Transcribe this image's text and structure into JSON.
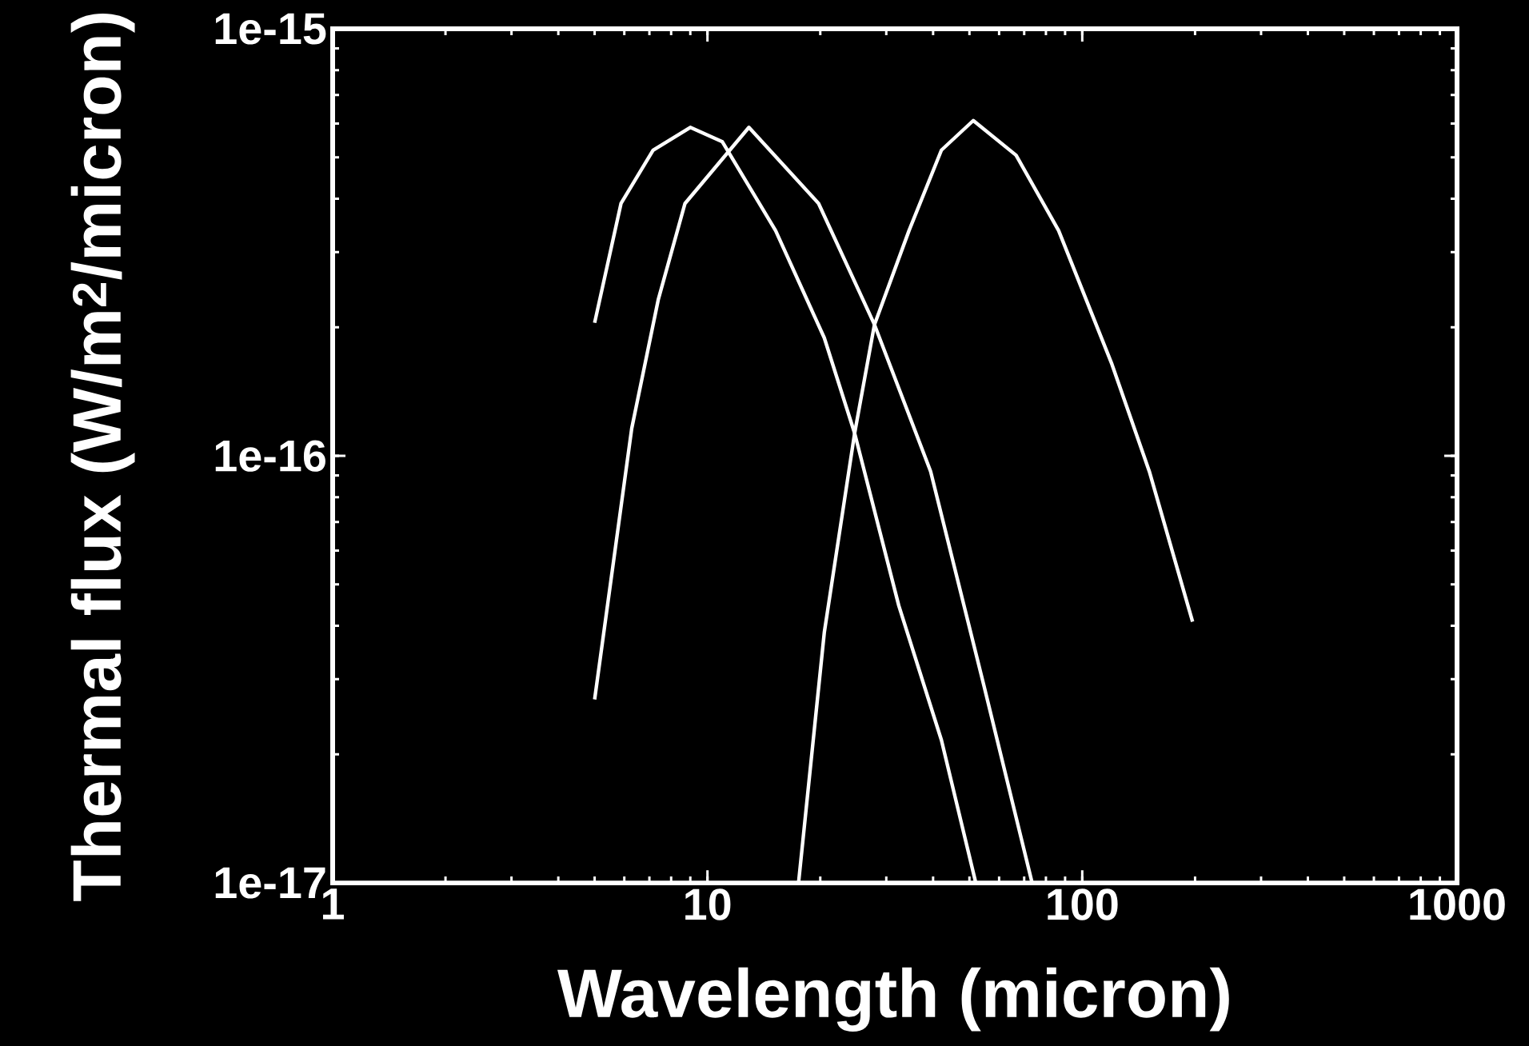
{
  "chart_data": {
    "type": "line",
    "xlabel": "Wavelength (micron)",
    "ylabel": "Thermal flux (W/m$^{2}$/micron)",
    "log": "xy",
    "marker": "none",
    "line_style": "solid",
    "xlim": [
      1,
      1000
    ],
    "ylim": [
      1e-17,
      1e-15
    ],
    "xticks": [
      1,
      10,
      100,
      1000
    ],
    "yticks": [
      {
        "value": 1e-17,
        "label": "1e-17"
      },
      {
        "value": 1e-16,
        "label": "1e-16"
      },
      {
        "value": 1e-15,
        "label": "1e-15"
      }
    ],
    "series": [
      {
        "color": "#ffffff",
        "x": [
          5,
          5.88,
          7.16,
          9.0,
          10.96,
          15.2,
          20.5,
          24.7,
          32.4,
          42.1,
          52
        ],
        "values": [
          2.05e-16,
          3.9e-16,
          5.2e-16,
          5.88e-16,
          5.44e-16,
          3.37e-16,
          1.89e-16,
          1.13e-16,
          4.46e-17,
          2.16e-17,
          1e-17
        ]
      },
      {
        "color": "#ffffff",
        "x": [
          5,
          6.28,
          7.39,
          8.71,
          12.9,
          19.8,
          27.9,
          39.4,
          54.7,
          73.5
        ],
        "values": [
          2.69e-17,
          1.16e-16,
          2.32e-16,
          3.9e-16,
          5.88e-16,
          3.9e-16,
          2.03e-16,
          9.2e-17,
          2.89e-17,
          1e-17
        ]
      },
      {
        "color": "#ffffff",
        "x": [
          17.5,
          20.5,
          24.7,
          27.9,
          34.5,
          42.1,
          51.2,
          66.6,
          86.5,
          120,
          151,
          197
        ],
        "values": [
          1e-17,
          3.86e-17,
          1.13e-16,
          2.03e-16,
          3.37e-16,
          5.2e-16,
          6.1e-16,
          5.06e-16,
          3.37e-16,
          1.64e-16,
          9.2e-17,
          4.09e-17
        ]
      }
    ]
  }
}
